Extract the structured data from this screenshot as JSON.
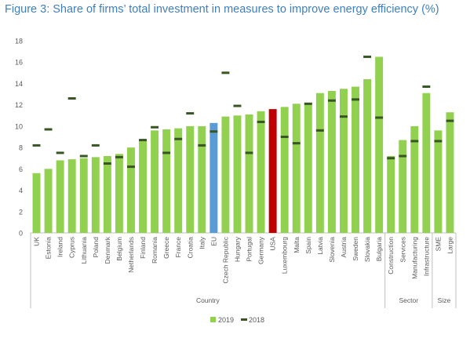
{
  "figure_title": "Figure 3: Share of firms’ total investment in measures to improve energy efficiency (%)",
  "colors": {
    "bar_2019": "#92d050",
    "bar_eu": "#5b9bd5",
    "bar_usa": "#c00000",
    "marker_2018": "#375623",
    "axis": "#bfbfbf",
    "text": "#595959"
  },
  "chart_data": {
    "type": "bar",
    "ylim": [
      0,
      18
    ],
    "yticks": [
      "0",
      "2",
      "4",
      "6",
      "8",
      "10",
      "12",
      "14",
      "16",
      "18"
    ],
    "categories": [
      "UK",
      "Estonia",
      "Ireland",
      "Cyprus",
      "Lithuania",
      "Poland",
      "Denmark",
      "Belgium",
      "Netherlands",
      "Finland",
      "Romania",
      "Greece",
      "France",
      "Croatia",
      "Italy",
      "EU",
      "Czech Republic",
      "Hungary",
      "Portugal",
      "Germany",
      "USA",
      "Luxembourg",
      "Malta",
      "Spain",
      "Latvia",
      "Slovenia",
      "Austria",
      "Sweden",
      "Slovakia",
      "Bulgaria",
      "Construction",
      "Services",
      "Manufacturing",
      "Infrastructure",
      "SME",
      "Large"
    ],
    "series": [
      {
        "name": "2019",
        "type": "bar",
        "values": [
          5.6,
          6.0,
          6.8,
          6.9,
          7.0,
          7.1,
          7.2,
          7.4,
          8.0,
          8.7,
          9.6,
          9.7,
          9.8,
          10.0,
          10.0,
          10.3,
          10.9,
          11.0,
          11.1,
          11.4,
          11.6,
          11.8,
          12.1,
          12.2,
          13.1,
          13.3,
          13.5,
          13.7,
          14.4,
          16.5,
          7.2,
          8.7,
          10.0,
          13.1,
          9.6,
          11.3
        ]
      },
      {
        "name": "2018",
        "type": "marker",
        "values": [
          8.2,
          9.7,
          7.5,
          12.6,
          7.2,
          8.2,
          6.5,
          7.1,
          6.2,
          8.7,
          9.9,
          7.5,
          8.8,
          11.2,
          8.2,
          9.5,
          15.0,
          11.9,
          7.5,
          10.4,
          null,
          9.0,
          8.4,
          12.1,
          9.6,
          12.4,
          10.9,
          12.5,
          16.5,
          10.8,
          7.0,
          7.2,
          8.6,
          13.7,
          8.6,
          10.5
        ]
      }
    ],
    "groups": [
      {
        "label": "Country",
        "start": 0,
        "end": 29
      },
      {
        "label": "Sector",
        "start": 30,
        "end": 33
      },
      {
        "label": "Size",
        "start": 34,
        "end": 35
      }
    ],
    "legend": [
      {
        "label": "2019",
        "kind": "bar"
      },
      {
        "label": "2018",
        "kind": "marker"
      }
    ],
    "legend_position": "bottom",
    "grid": false
  }
}
